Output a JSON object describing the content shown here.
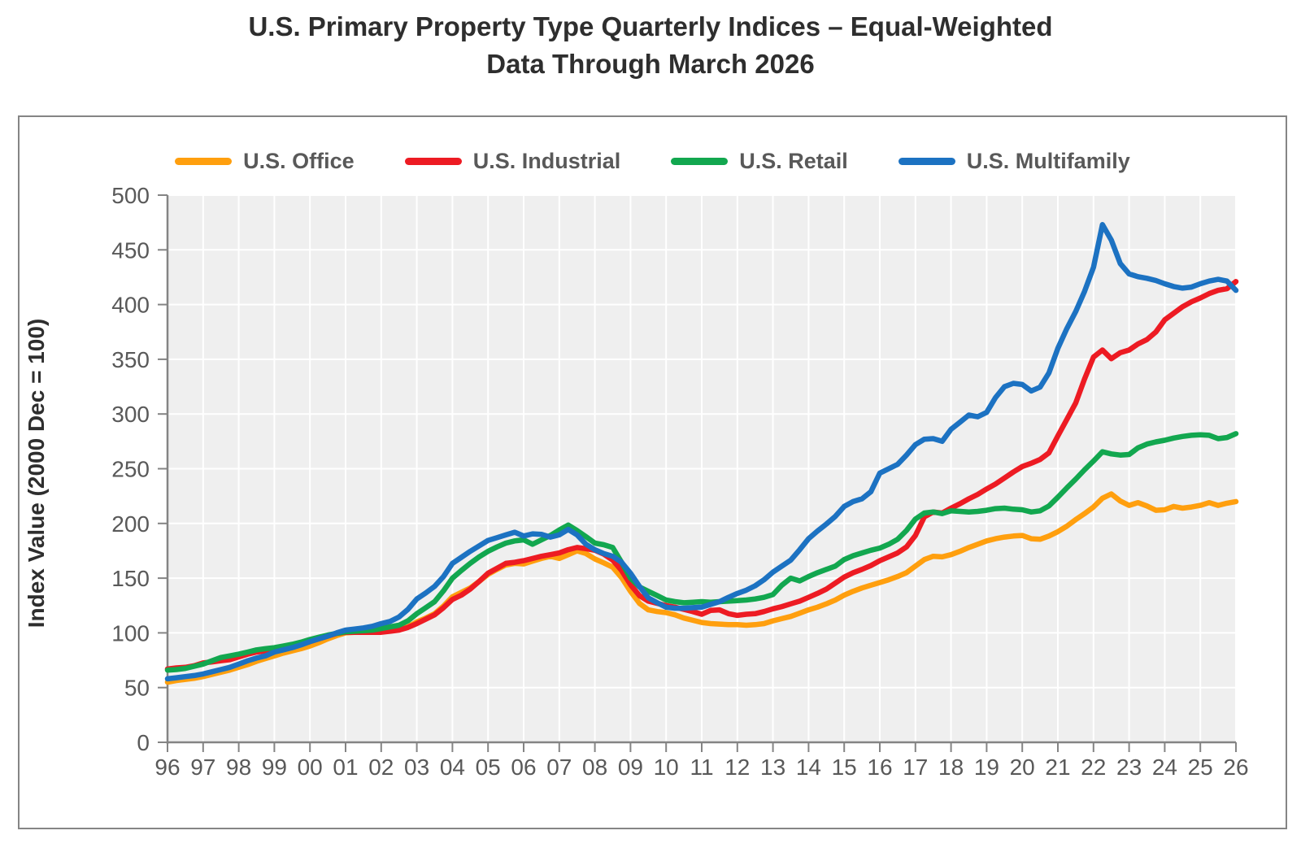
{
  "colors": {
    "plot_background": "#EFEFEF",
    "gridline": "#FFFFFF",
    "axis": "#848484",
    "tick_text": "#595959",
    "title_text": "#2E2E2E"
  },
  "chart_data": {
    "type": "line",
    "title": "U.S. Primary Property Type Quarterly Indices – Equal-Weighted",
    "subtitle": "Data Through March 2026",
    "legend_position": "top",
    "y_axis": {
      "title": "Index Value (2000 Dec = 100)",
      "min": 0,
      "max": 500,
      "step": 50,
      "grid": true
    },
    "x_axis": {
      "start_year": 1996,
      "end_year": 2026,
      "frequency": "quarterly",
      "grid": true,
      "tick_labels": [
        "96",
        "97",
        "98",
        "99",
        "00",
        "01",
        "02",
        "03",
        "04",
        "05",
        "06",
        "07",
        "08",
        "09",
        "10",
        "11",
        "12",
        "13",
        "14",
        "15",
        "16",
        "17",
        "18",
        "19",
        "20",
        "21",
        "22",
        "23",
        "24",
        "25",
        "26"
      ]
    },
    "series": [
      {
        "name": "U.S. Office",
        "color": "#FF9F0E",
        "values": [
          55,
          56.5,
          57.5,
          58.5,
          60,
          62,
          64,
          66,
          68.5,
          71,
          74,
          76.5,
          79,
          81.5,
          83.5,
          85.5,
          88,
          91,
          94.5,
          97.5,
          100,
          100.5,
          100.5,
          100.5,
          101,
          102,
          103.5,
          105.5,
          110,
          113.5,
          117.5,
          124.5,
          133,
          137,
          141,
          147,
          153.5,
          158,
          162,
          163.5,
          163,
          165.5,
          168,
          170,
          168,
          171.5,
          175,
          172.5,
          167.5,
          164,
          160,
          150.5,
          138,
          127,
          121,
          119.5,
          118.5,
          116.5,
          113.5,
          111.5,
          109.5,
          108.5,
          108,
          107.5,
          107.5,
          107,
          107.5,
          108.5,
          111,
          113,
          115,
          118,
          121,
          123.5,
          126.5,
          130,
          134.5,
          138,
          141,
          143.5,
          146,
          148.5,
          151.5,
          155,
          161,
          167,
          170,
          169.5,
          171.5,
          174.5,
          178,
          181,
          184,
          186,
          187.5,
          188.5,
          189,
          186,
          185.5,
          188.5,
          192.5,
          197.5,
          203.5,
          209,
          215,
          223,
          227,
          220.5,
          216.5,
          219,
          216,
          212,
          212.5,
          215.5,
          214,
          215,
          216.5,
          219,
          216.5,
          218.5,
          220
        ]
      },
      {
        "name": "U.S. Industrial",
        "color": "#ED1B23",
        "values": [
          67,
          68,
          68.5,
          70,
          72.5,
          73.5,
          74.5,
          75.5,
          78,
          80.5,
          82.5,
          83.5,
          84.5,
          86,
          87.5,
          89.5,
          92,
          94.5,
          97,
          99.5,
          100.5,
          100.5,
          100.5,
          100.5,
          100.5,
          101.5,
          102.5,
          105,
          108.5,
          112.5,
          116.5,
          123,
          130.5,
          134.5,
          140,
          147,
          154.5,
          159,
          163.5,
          164.5,
          166,
          168,
          170,
          171.5,
          173,
          176,
          178,
          177,
          175.5,
          172,
          166.5,
          157,
          144,
          134,
          129,
          127,
          125,
          123.5,
          121.5,
          119.5,
          117,
          120.5,
          121,
          117.5,
          116,
          117,
          117.5,
          119.5,
          122,
          124,
          126.5,
          129,
          132.5,
          136,
          140,
          145.5,
          151,
          155,
          158,
          161.5,
          166,
          169.5,
          173,
          178.5,
          189,
          206,
          210.5,
          209.5,
          214,
          218,
          222.5,
          226.5,
          231.5,
          236,
          241.5,
          247,
          252,
          255,
          258.5,
          264.5,
          280,
          295,
          310,
          332,
          352,
          358.5,
          350.5,
          356,
          358.5,
          364,
          368,
          375,
          386,
          392,
          398,
          402.5,
          406,
          410,
          413,
          414.5,
          421
        ]
      },
      {
        "name": "U.S. Retail",
        "color": "#12A74F",
        "values": [
          66,
          66.5,
          67.5,
          69.5,
          71.5,
          74.5,
          77.5,
          79,
          80.5,
          82.5,
          84.5,
          85.5,
          86.5,
          88,
          89.5,
          91.5,
          94,
          96,
          98,
          99.5,
          101,
          101.5,
          102,
          102.5,
          104,
          105.5,
          107,
          111,
          117.5,
          123,
          128.5,
          138.5,
          150,
          157,
          163.5,
          169.5,
          174.5,
          178.5,
          182,
          184,
          185,
          181,
          185,
          189,
          194,
          198.5,
          193.5,
          188,
          182,
          180.5,
          178,
          164.5,
          150,
          142,
          138,
          134,
          130,
          128.5,
          127.5,
          128,
          128.5,
          128,
          128.5,
          129,
          129.5,
          130,
          131,
          132.5,
          135,
          143.5,
          150,
          147.5,
          151.5,
          155,
          158,
          161,
          167,
          170.5,
          173,
          175.5,
          177.5,
          181,
          185.5,
          193.5,
          204,
          209.5,
          210.5,
          209,
          211.5,
          211,
          210.5,
          211,
          212,
          213.5,
          214,
          213,
          212.5,
          210.5,
          211.5,
          216,
          224,
          232.5,
          240.5,
          249,
          257,
          265.5,
          263.5,
          262.5,
          263,
          269,
          272.5,
          274.5,
          276,
          278,
          279.5,
          280.5,
          281,
          280.5,
          277.5,
          278.5,
          282
        ]
      },
      {
        "name": "U.S. Multifamily",
        "color": "#1C72C2",
        "values": [
          58,
          59,
          60,
          61,
          62.5,
          64.5,
          66.5,
          68.5,
          71.5,
          74.5,
          77,
          79,
          82.5,
          84.5,
          86.5,
          89,
          92,
          94.5,
          97,
          100,
          102.5,
          103.5,
          104.5,
          106,
          108.5,
          110.5,
          114.5,
          121.5,
          131,
          136.5,
          142.5,
          151.5,
          163.5,
          169,
          174.5,
          179.5,
          184.5,
          187,
          189.5,
          192,
          188.5,
          190.5,
          190,
          187.5,
          189.5,
          194.5,
          189.5,
          181,
          176,
          172.5,
          170,
          164.5,
          154.5,
          142.5,
          132,
          127.5,
          123.5,
          122.5,
          122.5,
          123,
          123.5,
          126,
          128.5,
          132.5,
          136,
          139,
          143,
          148.5,
          155.5,
          161,
          166.5,
          176,
          186,
          193,
          199.5,
          206.5,
          215.5,
          220,
          222.5,
          229,
          246,
          250,
          254,
          262.5,
          272,
          277,
          277.5,
          275,
          286,
          292.5,
          299,
          297.5,
          301.5,
          315,
          325,
          328,
          327,
          321,
          324.5,
          337.5,
          360,
          378,
          393.5,
          412,
          434,
          473,
          459,
          437.5,
          428,
          425.5,
          424,
          422,
          419,
          416.5,
          415,
          416,
          419,
          421.5,
          423,
          421.5,
          413
        ]
      }
    ]
  }
}
